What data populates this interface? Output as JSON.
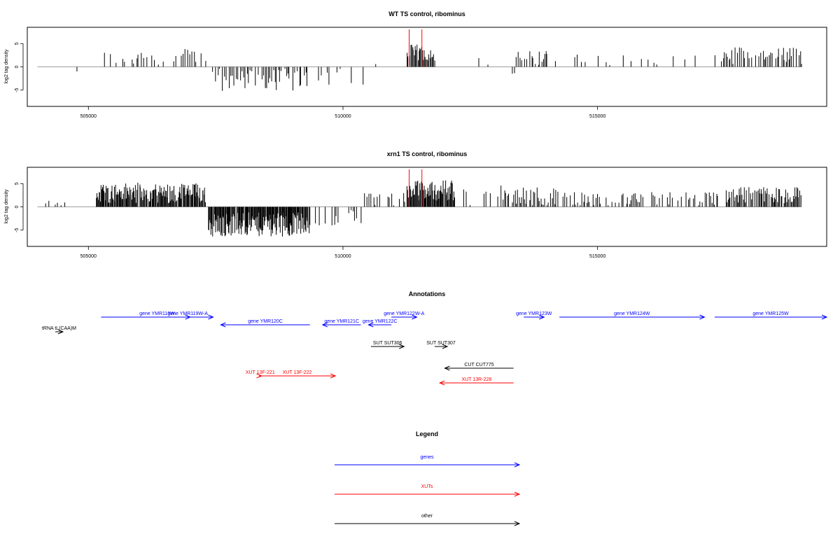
{
  "colors": {
    "gene": "#0000ff",
    "xut": "#ff0000",
    "other": "#000000",
    "marker": "#ff0000",
    "bar": "#000000",
    "baseline": "#808080"
  },
  "panels": [
    {
      "title": "WT TS control, ribominus",
      "ylabel": "log2 tag density"
    },
    {
      "title": "xrn1 TS control, ribominus",
      "ylabel": "log2 tag density"
    }
  ],
  "axis": {
    "xlim": [
      503800,
      519500
    ],
    "ylim": [
      -8.5,
      8.5
    ],
    "xticks": [
      505000,
      510000,
      515000
    ],
    "xtick_labels": [
      "505000",
      "510000",
      "515000"
    ],
    "yticks": [
      5,
      0,
      -5
    ],
    "ytick_labels": [
      "5",
      "0",
      "-5"
    ],
    "baseline_x": [
      504000,
      519000
    ]
  },
  "chart_data": [
    {
      "type": "bar",
      "title": "WT TS control, ribominus",
      "ylabel": "log2 tag density",
      "xlabel": "",
      "xlim": [
        503800,
        519500
      ],
      "ylim": [
        -8.5,
        8.5
      ],
      "markers_x": [
        511300,
        511550
      ],
      "segments": [
        {
          "from": 504750,
          "to": 504800,
          "step": 50,
          "base": -0.8,
          "amp": 0.5,
          "density": 0.9
        },
        {
          "from": 505200,
          "to": 506500,
          "step": 45,
          "base": 1.8,
          "amp": 1.6,
          "density": 0.55
        },
        {
          "from": 506650,
          "to": 507300,
          "step": 40,
          "base": 2.2,
          "amp": 1.8,
          "density": 0.6
        },
        {
          "from": 507400,
          "to": 509300,
          "step": 32,
          "base": -2.8,
          "amp": 2.4,
          "density": 0.8
        },
        {
          "from": 509500,
          "to": 510500,
          "step": 70,
          "base": -1.8,
          "amp": 2.2,
          "density": 0.5
        },
        {
          "from": 510600,
          "to": 511200,
          "step": 80,
          "base": 1.2,
          "amp": 1.0,
          "density": 0.35
        },
        {
          "from": 511250,
          "to": 511800,
          "step": 18,
          "base": 3.0,
          "amp": 1.8,
          "density": 0.95
        },
        {
          "from": 512600,
          "to": 513200,
          "step": 90,
          "base": 1.8,
          "amp": 1.8,
          "density": 0.3
        },
        {
          "from": 513300,
          "to": 513350,
          "step": 50,
          "base": -1.3,
          "amp": 0.6,
          "density": 0.9
        },
        {
          "from": 513400,
          "to": 514000,
          "step": 25,
          "base": 2.0,
          "amp": 1.6,
          "density": 0.7
        },
        {
          "from": 514100,
          "to": 517300,
          "step": 70,
          "base": 1.4,
          "amp": 1.4,
          "density": 0.5
        },
        {
          "from": 517400,
          "to": 519000,
          "step": 28,
          "base": 2.4,
          "amp": 1.8,
          "density": 0.75
        }
      ]
    },
    {
      "type": "bar",
      "title": "xrn1 TS control, ribominus",
      "ylabel": "log2 tag density",
      "xlabel": "",
      "xlim": [
        503800,
        519500
      ],
      "ylim": [
        -8.5,
        8.5
      ],
      "markers_x": [
        511300,
        511550
      ],
      "segments": [
        {
          "from": 504150,
          "to": 504550,
          "step": 60,
          "base": 0.4,
          "amp": 1.5,
          "density": 0.7
        },
        {
          "from": 505150,
          "to": 507300,
          "step": 14,
          "base": 3.0,
          "amp": 2.2,
          "density": 0.95
        },
        {
          "from": 507350,
          "to": 509350,
          "step": 12,
          "base": -3.8,
          "amp": 2.6,
          "density": 0.95
        },
        {
          "from": 509450,
          "to": 510350,
          "step": 40,
          "base": -2.0,
          "amp": 2.0,
          "density": 0.6
        },
        {
          "from": 510400,
          "to": 511250,
          "step": 45,
          "base": 1.5,
          "amp": 1.5,
          "density": 0.6
        },
        {
          "from": 511250,
          "to": 512200,
          "step": 14,
          "base": 3.5,
          "amp": 2.2,
          "density": 0.95
        },
        {
          "from": 512300,
          "to": 513100,
          "step": 45,
          "base": 2.0,
          "amp": 2.2,
          "density": 0.6
        },
        {
          "from": 513100,
          "to": 513250,
          "step": 30,
          "base": 4.0,
          "amp": 2.5,
          "density": 0.9
        },
        {
          "from": 513300,
          "to": 514200,
          "step": 25,
          "base": 2.2,
          "amp": 2.0,
          "density": 0.8
        },
        {
          "from": 514200,
          "to": 517400,
          "step": 30,
          "base": 1.6,
          "amp": 1.6,
          "density": 0.7
        },
        {
          "from": 517500,
          "to": 519000,
          "step": 18,
          "base": 2.5,
          "amp": 1.8,
          "density": 0.9
        }
      ]
    }
  ],
  "annotations": {
    "title": "Annotations",
    "items": [
      {
        "label": "gene YMR119W",
        "kind": "gene",
        "start": 505250,
        "end": 507450,
        "dir": "+",
        "row": 1
      },
      {
        "label": "gene YMR119W-A",
        "kind": "gene",
        "start": 506900,
        "end": 507000,
        "dir": "+",
        "row": 1
      },
      {
        "label": "gene YMR120C",
        "kind": "gene",
        "start": 507600,
        "end": 509350,
        "dir": "-",
        "row": 2
      },
      {
        "label": "gene YMR121C",
        "kind": "gene",
        "start": 509600,
        "end": 510350,
        "dir": "-",
        "row": 2
      },
      {
        "label": "gene YMR122C",
        "kind": "gene",
        "start": 510500,
        "end": 510950,
        "dir": "-",
        "row": 2
      },
      {
        "label": "gene YMR122W-A",
        "kind": "gene",
        "start": 510950,
        "end": 511450,
        "dir": "+",
        "row": 1
      },
      {
        "label": "gene YMR123W",
        "kind": "gene",
        "start": 513550,
        "end": 513950,
        "dir": "+",
        "row": 1
      },
      {
        "label": "gene YMR124W",
        "kind": "gene",
        "start": 514250,
        "end": 517100,
        "dir": "+",
        "row": 1
      },
      {
        "label": "gene YMR125W",
        "kind": "gene",
        "start": 517300,
        "end": 519500,
        "dir": "+",
        "row": 1
      },
      {
        "label": "tRNA tL(CAA)M",
        "kind": "other",
        "start": 504350,
        "end": 504500,
        "dir": "+",
        "row": 3
      },
      {
        "label": "SUT SUT306",
        "kind": "other",
        "start": 510550,
        "end": 511200,
        "dir": "+",
        "row": 4
      },
      {
        "label": "SUT SUT307",
        "kind": "other",
        "start": 511800,
        "end": 512050,
        "dir": "+",
        "row": 4
      },
      {
        "label": "CUT CUT775",
        "kind": "other",
        "start": 512000,
        "end": 513350,
        "dir": "-",
        "row": 5
      },
      {
        "label": "XUT 13F-221",
        "kind": "xut",
        "start": 508350,
        "end": 508400,
        "dir": "+",
        "row": 6
      },
      {
        "label": "XUT 13F-222",
        "kind": "xut",
        "start": 508350,
        "end": 509850,
        "dir": "+",
        "row": 6
      },
      {
        "label": "XUT 13R-228",
        "kind": "xut",
        "start": 511900,
        "end": 513350,
        "dir": "-",
        "row": 7
      }
    ]
  },
  "legend": {
    "title": "Legend",
    "items": [
      {
        "label": "genes",
        "kind": "gene"
      },
      {
        "label": "XUTs",
        "kind": "xut"
      },
      {
        "label": "other",
        "kind": "other"
      }
    ]
  }
}
